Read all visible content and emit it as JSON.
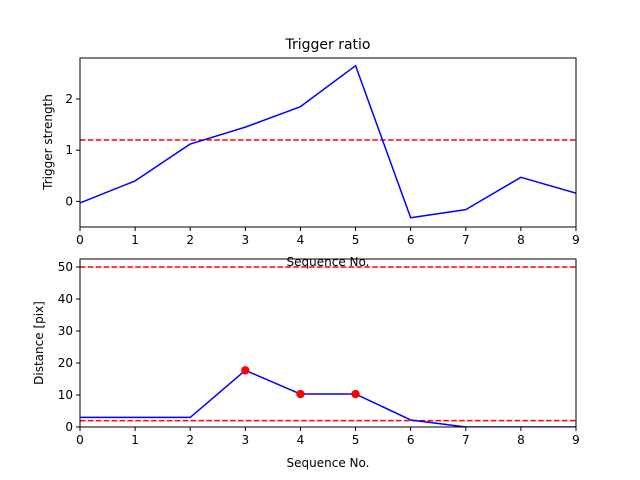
{
  "chart_data": [
    {
      "type": "line",
      "title": "Trigger ratio",
      "xlabel": "Sequence No.",
      "ylabel": "Trigger strength",
      "xlim": [
        0,
        9
      ],
      "ylim": [
        -0.5,
        2.8
      ],
      "xticks": [
        "0",
        "1",
        "2",
        "3",
        "4",
        "5",
        "6",
        "7",
        "8",
        "9"
      ],
      "yticks": [
        0,
        1,
        2
      ],
      "x": [
        0,
        1,
        2,
        3,
        4,
        5,
        6,
        7,
        8,
        9
      ],
      "series": [
        {
          "values": [
            -0.03,
            0.4,
            1.12,
            1.45,
            1.85,
            2.65,
            -0.32,
            -0.16,
            0.47,
            0.16
          ],
          "color": "#0000ff",
          "style": "solid"
        }
      ],
      "hlines": [
        {
          "y": 1.2,
          "color": "#ff0000",
          "style": "dashed"
        }
      ],
      "grid": false
    },
    {
      "type": "line",
      "title": "",
      "xlabel": "Sequence No.",
      "ylabel": "Distance [pix]",
      "xlim": [
        0,
        9
      ],
      "ylim": [
        0,
        52.5
      ],
      "xticks": [
        "0",
        "1",
        "2",
        "3",
        "4",
        "5",
        "6",
        "7",
        "8",
        "9"
      ],
      "yticks": [
        0,
        10,
        20,
        30,
        40,
        50
      ],
      "x": [
        0,
        1,
        2,
        3,
        4,
        5,
        6,
        7,
        8,
        9
      ],
      "series": [
        {
          "values": [
            3,
            3,
            3,
            17.7,
            10.3,
            10.3,
            2.2,
            0,
            0,
            0
          ],
          "color": "#0000ff",
          "style": "solid"
        }
      ],
      "markers": {
        "x": [
          3,
          4,
          5
        ],
        "y": [
          17.7,
          10.3,
          10.3
        ],
        "color": "#ff0000"
      },
      "hlines": [
        {
          "y": 50,
          "color": "#ff0000",
          "style": "dashed"
        },
        {
          "y": 2,
          "color": "#ff0000",
          "style": "dashed"
        }
      ],
      "grid": false
    }
  ]
}
